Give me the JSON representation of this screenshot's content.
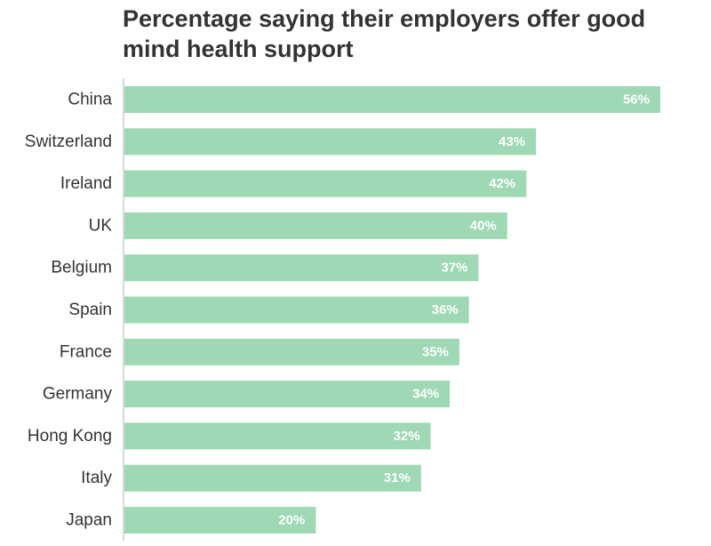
{
  "chart_data": {
    "type": "bar",
    "orientation": "horizontal",
    "title": "Percentage saying their employers offer good mind health support",
    "categories": [
      "China",
      "Switzerland",
      "Ireland",
      "UK",
      "Belgium",
      "Spain",
      "France",
      "Germany",
      "Hong Kong",
      "Italy",
      "Japan"
    ],
    "values": [
      56,
      43,
      42,
      40,
      37,
      36,
      35,
      34,
      32,
      31,
      20
    ],
    "value_labels": [
      "56%",
      "43%",
      "42%",
      "40%",
      "37%",
      "36%",
      "35%",
      "34%",
      "32%",
      "31%",
      "20%"
    ],
    "xlim": [
      0,
      56
    ],
    "xlabel": "",
    "ylabel": "",
    "grid": false,
    "bar_color": "#9ed8b4",
    "value_label_color": "#ffffff",
    "axis_color": "#cccccc"
  }
}
